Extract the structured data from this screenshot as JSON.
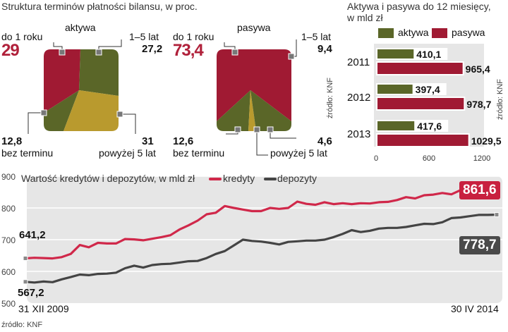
{
  "colors": {
    "red": "#a01a33",
    "green": "#5a6628",
    "gold": "#b99a2e",
    "grey": "#e6e6e6",
    "credit": "#d0284a",
    "deposit": "#444444"
  },
  "structure": {
    "title": "Struktura terminów płatności bilansu, w proc.",
    "assets": {
      "heading": "aktywa",
      "up_to_1y": {
        "label": "do 1 roku",
        "value": "29"
      },
      "y1_5": {
        "label": "1–5 lat",
        "value": "27,2"
      },
      "no_term": {
        "label": "bez terminu",
        "value": "12,8"
      },
      "over_5y": {
        "label": "powyżej 5 lat",
        "value": "31"
      }
    },
    "liabilities": {
      "heading": "pasywa",
      "up_to_1y": {
        "label": "do 1 roku",
        "value": "73,4"
      },
      "y1_5": {
        "label": "1–5 lat",
        "value": "9,4"
      },
      "no_term": {
        "label": "bez terminu",
        "value": "12,6"
      },
      "over_5y": {
        "label": "powyżej 5 lat",
        "value": "4,6"
      }
    },
    "source": "źródło: KNF"
  },
  "bars": {
    "title_line1": "Aktywa i pasywa do 12 miesięcy,",
    "title_line2": "w mld zł",
    "legend": [
      "aktywa",
      "pasywa"
    ],
    "source": "źródło: KNF"
  },
  "line": {
    "title": "Wartość kredytów i depozytów, w mld zł",
    "legend": [
      "kredyty",
      "depozyty"
    ],
    "start_label": "31 XII 2009",
    "end_label": "30 IV 2014",
    "source": "źródło: KNF",
    "credit_start": "641,2",
    "credit_end": "861,6",
    "deposit_start": "567,2",
    "deposit_end": "778,7"
  },
  "chart_data": [
    {
      "type": "pie",
      "title": "aktywa",
      "categories": [
        "do 1 roku",
        "1–5 lat",
        "bez terminu",
        "powyżej 5 lat"
      ],
      "values": [
        29,
        27.2,
        12.8,
        31
      ]
    },
    {
      "type": "pie",
      "title": "pasywa",
      "categories": [
        "do 1 roku",
        "1–5 lat",
        "bez terminu",
        "powyżej 5 lat"
      ],
      "values": [
        73.4,
        9.4,
        12.6,
        4.6
      ]
    },
    {
      "type": "bar",
      "categories": [
        "2011",
        "2012",
        "2013"
      ],
      "series": [
        {
          "name": "aktywa",
          "values": [
            410.1,
            397.4,
            417.6
          ],
          "labels": [
            "410,1",
            "397,4",
            "417,6"
          ]
        },
        {
          "name": "pasywa",
          "values": [
            965.4,
            978.7,
            1029.5
          ],
          "labels": [
            "965,4",
            "978,7",
            "1029,5"
          ]
        }
      ],
      "xticks": [
        0,
        600,
        1200
      ],
      "xlim": [
        0,
        1200
      ]
    },
    {
      "type": "line",
      "ylim": [
        500,
        900
      ],
      "yticks": [
        500,
        600,
        700,
        800,
        900
      ],
      "series": [
        {
          "name": "kredyty",
          "values": [
            641.2,
            643,
            642,
            641,
            645,
            655,
            683,
            676,
            690,
            688,
            688,
            702,
            701,
            698,
            703,
            708,
            714,
            732,
            745,
            760,
            780,
            785,
            806,
            800,
            795,
            790,
            790,
            800,
            797,
            800,
            820,
            813,
            810,
            818,
            812,
            815,
            812,
            815,
            814,
            818,
            819,
            825,
            834,
            830,
            840,
            842,
            847,
            843,
            856,
            845,
            855,
            855,
            861.6
          ]
        },
        {
          "name": "depozyty",
          "values": [
            567.2,
            565,
            568,
            566,
            575,
            582,
            590,
            588,
            592,
            593,
            596,
            610,
            618,
            612,
            620,
            623,
            624,
            628,
            632,
            633,
            642,
            655,
            664,
            682,
            700,
            696,
            694,
            690,
            685,
            693,
            695,
            697,
            697,
            700,
            708,
            718,
            730,
            724,
            728,
            735,
            737,
            737,
            740,
            745,
            750,
            749,
            755,
            768,
            770,
            774,
            778,
            778,
            778.7
          ]
        }
      ]
    }
  ]
}
